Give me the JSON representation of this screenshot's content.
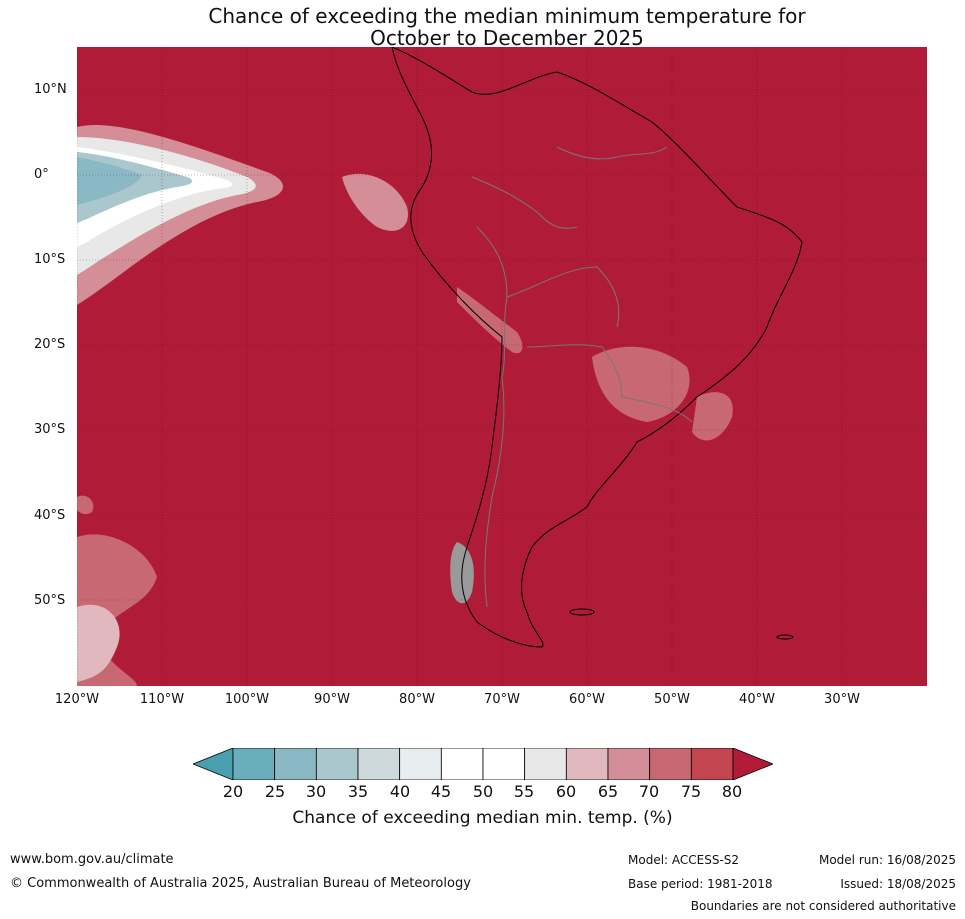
{
  "title": {
    "line1": "Chance of exceeding the median minimum temperature for",
    "line2": "October to December 2025"
  },
  "map": {
    "lat_labels": [
      "10°N",
      "0°",
      "10°S",
      "20°S",
      "30°S",
      "40°S",
      "50°S"
    ],
    "lon_labels": [
      "120°W",
      "110°W",
      "100°W",
      "90°W",
      "80°W",
      "70°W",
      "60°W",
      "50°W",
      "40°W",
      "30°W"
    ],
    "background_color": "#b01c38"
  },
  "legend": {
    "ticks": [
      "20",
      "25",
      "30",
      "35",
      "40",
      "45",
      "50",
      "55",
      "60",
      "65",
      "70",
      "75",
      "80"
    ],
    "colors": [
      "#4a9fae",
      "#6aaebc",
      "#8ab9c5",
      "#a9c7cc",
      "#cdd9dd",
      "#e8eef0",
      "#ffffff",
      "#ffffff",
      "#e8e8e8",
      "#e0b8be",
      "#d48e97",
      "#c86872",
      "#c2454f",
      "#b01c38"
    ],
    "title": "Chance of exceeding median min. temp. (%)"
  },
  "footer": {
    "url": "www.bom.gov.au/climate",
    "copyright": "© Commonwealth of Australia 2025, Australian Bureau of Meteorology",
    "model": "Model: ACCESS-S2",
    "base_period": "Base period: 1981-2018",
    "model_run": "Model run: 16/08/2025",
    "issued": "Issued: 18/08/2025",
    "boundaries": "Boundaries are not considered authoritative"
  }
}
